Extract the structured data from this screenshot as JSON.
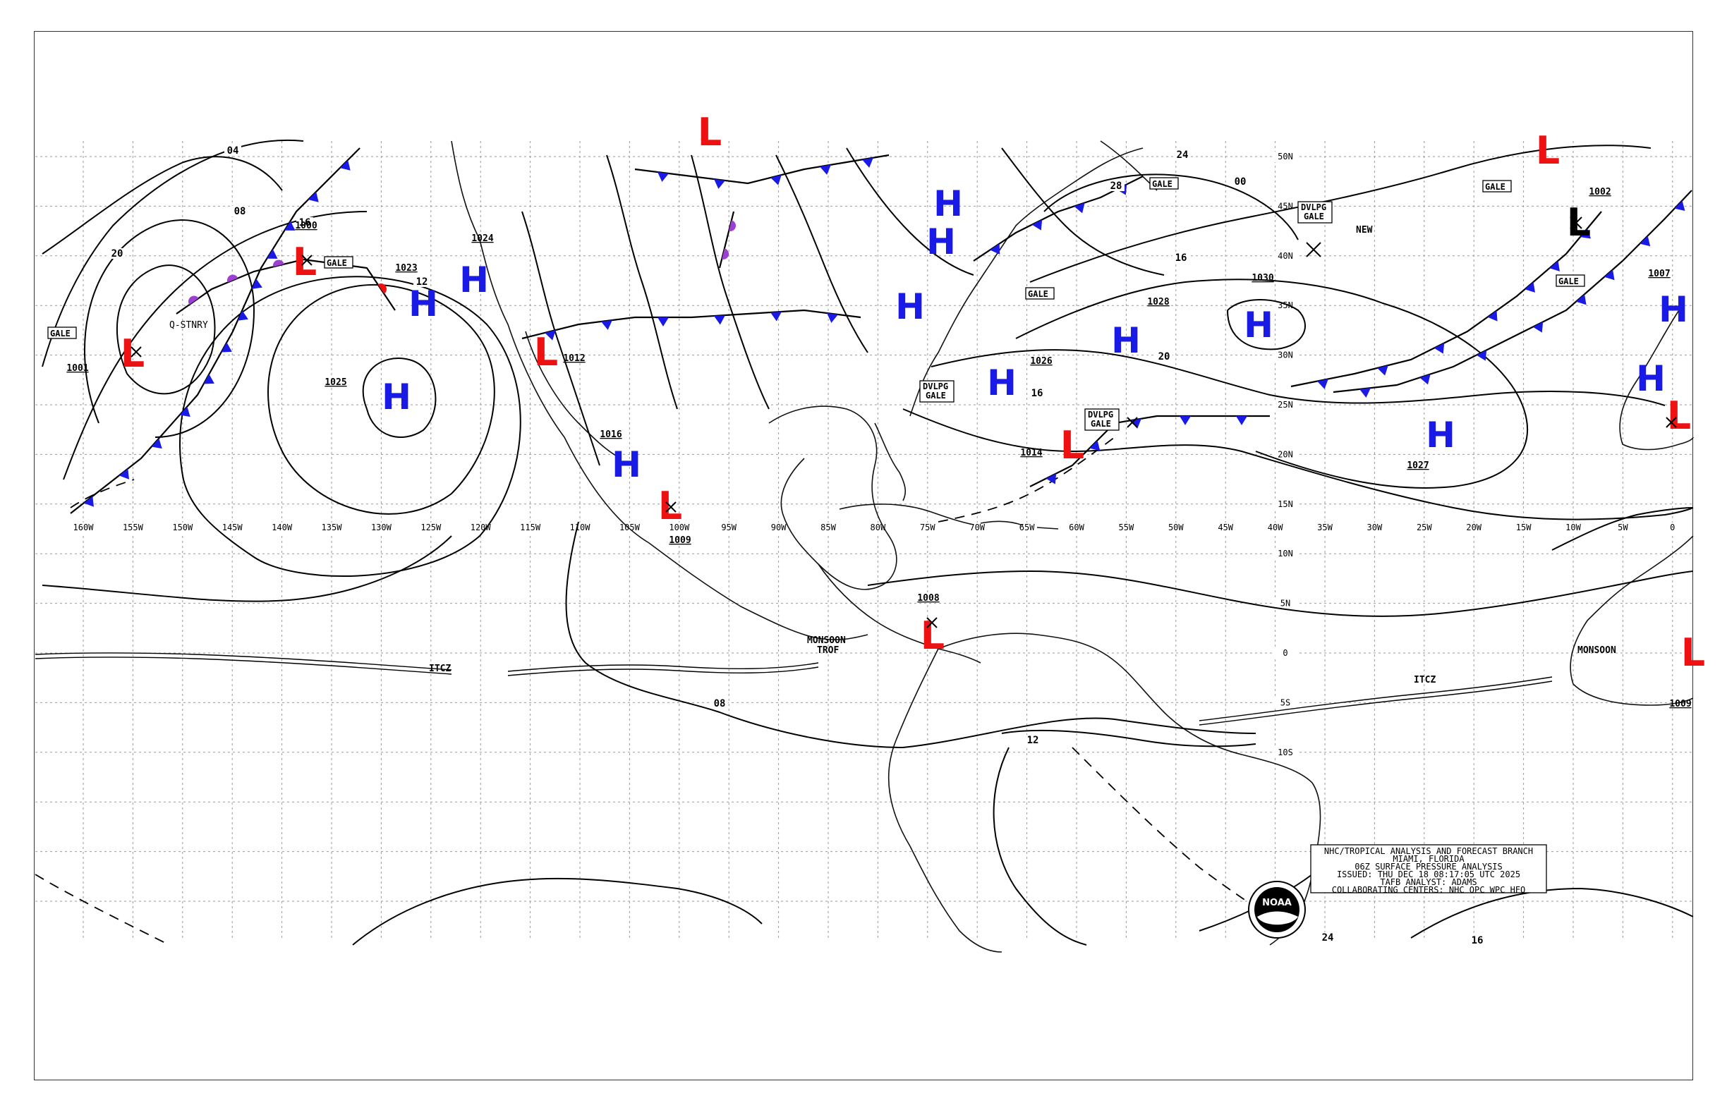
{
  "map": {
    "longitude_labels": [
      "160W",
      "155W",
      "150W",
      "145W",
      "140W",
      "135W",
      "130W",
      "125W",
      "120W",
      "115W",
      "110W",
      "105W",
      "100W",
      "95W",
      "90W",
      "85W",
      "80W",
      "75W",
      "70W",
      "65W",
      "60W",
      "55W",
      "50W",
      "45W",
      "40W",
      "35W",
      "30W",
      "25W",
      "20W",
      "15W",
      "10W",
      "5W",
      "0"
    ],
    "latitude_labels": [
      "50N",
      "45N",
      "40N",
      "35N",
      "30N",
      "25N",
      "20N",
      "15N",
      "10N",
      "5N",
      "0",
      "5S",
      "10S"
    ],
    "high_label": "H",
    "low_label": "L",
    "pressure_centers": [
      "1024",
      "1023",
      "1025",
      "1030",
      "1028",
      "1026",
      "1027",
      "1016",
      "1014",
      "1012",
      "1009",
      "1008",
      "1009",
      "1001",
      "1000",
      "1002",
      "1007"
    ],
    "isobar_labels": [
      "04",
      "08",
      "20",
      "16",
      "12",
      "24",
      "28",
      "00",
      "16",
      "20",
      "16",
      "12",
      "08",
      "24",
      "16"
    ],
    "box_labels": {
      "gale": "GALE",
      "dvlpg_gale_1": "DVLPG\nGALE",
      "dvlpg_gale_line1": "DVLPG",
      "dvlpg_gale_line2": "GALE"
    },
    "feature_labels": {
      "q_stnry": "Q-STNRY",
      "itcz": "ITCZ",
      "monsoon_trof_1": "MONSOON",
      "monsoon_trof_2": "TROF",
      "new": "NEW"
    },
    "info_box": {
      "line1": "NHC/TROPICAL ANALYSIS AND FORECAST BRANCH",
      "line2": "MIAMI, FLORIDA",
      "line3": "06Z SURFACE PRESSURE ANALYSIS",
      "line4": "ISSUED: THU DEC 18 08:17:05 UTC 2025",
      "line5": "TAFB ANALYST: ADAMS",
      "line6": "COLLABORATING CENTERS: NHC OPC WPC HFO"
    },
    "logo_text": "NOAA",
    "colors": {
      "high": "#1a1ae6",
      "low": "#ee1111",
      "cold_front": "#1a1ae6",
      "warm_front": "#ee1111",
      "occluded": "#9b40d0"
    }
  }
}
